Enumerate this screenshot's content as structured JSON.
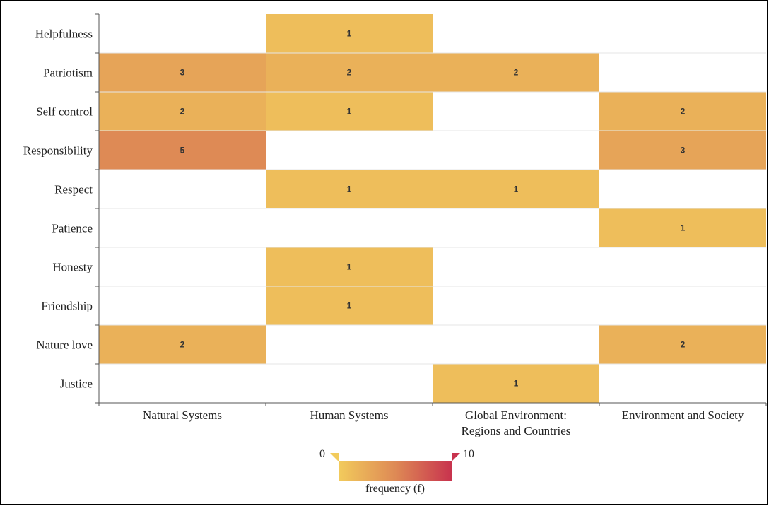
{
  "chart_data": {
    "type": "heatmap",
    "rows": [
      "Helpfulness",
      "Patriotism",
      "Self control",
      "Responsibility",
      "Respect",
      "Patience",
      "Honesty",
      "Friendship",
      "Nature love",
      "Justice"
    ],
    "columns": [
      [
        "Natural Systems"
      ],
      [
        "Human Systems"
      ],
      [
        "Global Environment:",
        "Regions and Countries"
      ],
      [
        "Environment and Society"
      ]
    ],
    "values": [
      [
        null,
        1,
        null,
        null
      ],
      [
        3,
        2,
        2,
        null
      ],
      [
        2,
        1,
        null,
        2
      ],
      [
        5,
        null,
        null,
        3
      ],
      [
        null,
        1,
        1,
        null
      ],
      [
        null,
        null,
        null,
        1
      ],
      [
        null,
        1,
        null,
        null
      ],
      [
        null,
        1,
        null,
        null
      ],
      [
        2,
        null,
        null,
        2
      ],
      [
        null,
        null,
        1,
        null
      ]
    ],
    "color_range": [
      0,
      10
    ],
    "colors": {
      "low": "#f2cb5c",
      "mid": "#de8a55",
      "high": "#c8334e"
    },
    "legend": {
      "min_label": "0",
      "max_label": "10",
      "title": "frequency (f)",
      "placement": "bottom-center"
    }
  }
}
